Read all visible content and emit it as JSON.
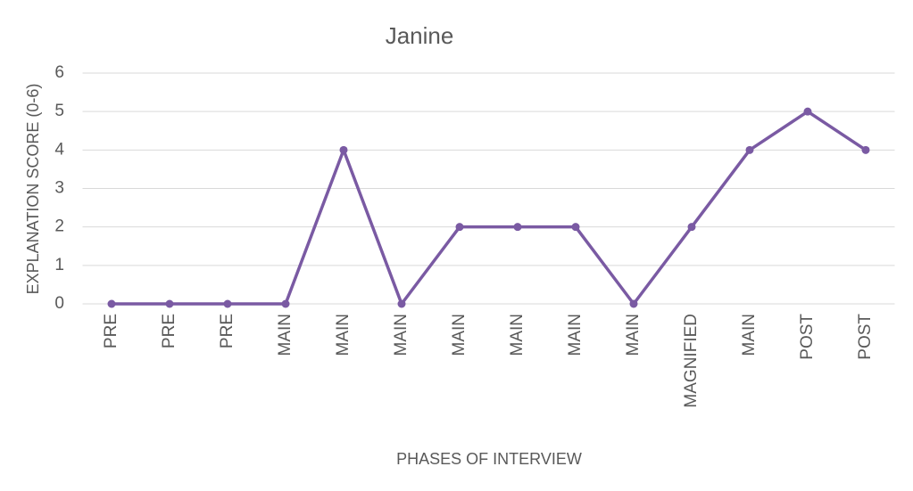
{
  "chart_data": {
    "type": "line",
    "title": "Janine",
    "x_label": "PHASES OF INTERVIEW",
    "y_label": "EXPLANATION SCORE (0-6)",
    "categories": [
      "PRE",
      "PRE",
      "PRE",
      "MAIN",
      "MAIN",
      "MAIN",
      "MAIN",
      "MAIN",
      "MAIN",
      "MAIN",
      "MAGNIFIED",
      "MAIN",
      "POST",
      "POST"
    ],
    "values": [
      0,
      0,
      0,
      0,
      4,
      0,
      2,
      2,
      2,
      0,
      2,
      4,
      5,
      4
    ],
    "color": "#7a5aa3",
    "ylim": [
      0,
      6
    ],
    "yticks": [
      0,
      1,
      2,
      3,
      4,
      5,
      6
    ],
    "grid": true
  }
}
